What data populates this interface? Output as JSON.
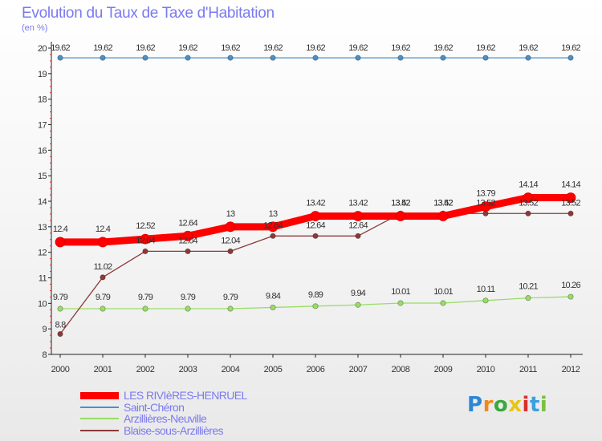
{
  "chart_data": {
    "type": "line",
    "title": "Evolution du Taux de Taxe d'Habitation",
    "subtitle": "(en %)",
    "xlabel": "",
    "ylabel": "",
    "ylim": [
      8,
      20
    ],
    "yticks": [
      "8",
      "9",
      "10",
      "11",
      "12",
      "13",
      "14",
      "15",
      "16",
      "17",
      "18",
      "19",
      "20"
    ],
    "categories": [
      "2000",
      "2001",
      "2002",
      "2003",
      "2004",
      "2005",
      "2006",
      "2007",
      "2008",
      "2009",
      "2010",
      "2011",
      "2012"
    ],
    "grid": false,
    "legend_position": "bottom-left",
    "series": [
      {
        "name": "LES RIVIèRES-HENRUEL",
        "color": "#ff0000",
        "values": [
          12.4,
          12.4,
          12.52,
          12.64,
          13,
          13,
          13.42,
          13.42,
          13.42,
          13.42,
          13.79,
          14.14,
          14.14
        ],
        "labels": [
          "12.4",
          "12.4",
          "12.52",
          "12.64",
          "13",
          "13",
          "13.42",
          "13.42",
          "13.42",
          "13.42",
          "13.79",
          "14.14",
          "14.14"
        ]
      },
      {
        "name": "Saint-Chéron",
        "color": "#4a90c8",
        "values": [
          19.62,
          19.62,
          19.62,
          19.62,
          19.62,
          19.62,
          19.62,
          19.62,
          19.62,
          19.62,
          19.62,
          19.62,
          19.62
        ],
        "labels": [
          "19.62",
          "19.62",
          "19.62",
          "19.62",
          "19.62",
          "19.62",
          "19.62",
          "19.62",
          "19.62",
          "19.62",
          "19.62",
          "19.62",
          "19.62"
        ]
      },
      {
        "name": "Arzillières-Neuville",
        "color": "#99dd66",
        "values": [
          9.79,
          9.79,
          9.79,
          9.79,
          9.79,
          9.84,
          9.89,
          9.94,
          10.01,
          10.01,
          10.11,
          10.21,
          10.26
        ],
        "labels": [
          "9.79",
          "9.79",
          "9.79",
          "9.79",
          "9.79",
          "9.84",
          "9.89",
          "9.94",
          "10.01",
          "10.01",
          "10.11",
          "10.21",
          "10.26"
        ]
      },
      {
        "name": "Blaise-sous-Arzillières",
        "color": "#8b3a3a",
        "values": [
          8.8,
          11.02,
          12.04,
          12.04,
          12.04,
          12.64,
          12.64,
          12.64,
          13.52,
          13.52,
          13.52,
          13.52,
          13.52
        ],
        "labels": [
          "8.8",
          "11.02",
          "12.04",
          "12.04",
          "12.04",
          "12.64",
          "12.64",
          "12.64",
          "13.52",
          "13.52",
          "13.52",
          "13.52",
          "13.52"
        ]
      }
    ]
  },
  "logo": {
    "letters": [
      "P",
      "r",
      "o",
      "x",
      "i",
      "t",
      "i"
    ]
  }
}
